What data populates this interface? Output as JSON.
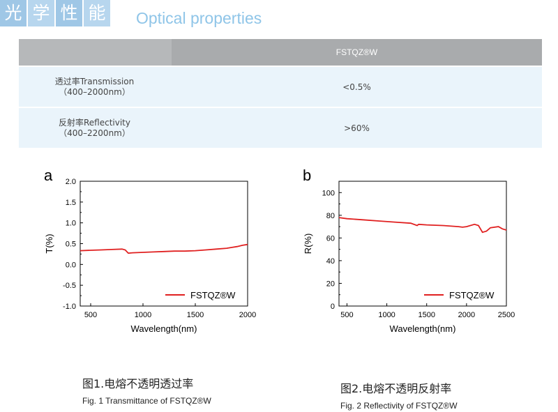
{
  "header": {
    "tiles": [
      "光",
      "学",
      "性",
      "能"
    ],
    "title_en": "Optical properties"
  },
  "table": {
    "column_header": "FSTQZ®W",
    "rows": [
      {
        "label_zh": "透过率Transmission",
        "label_range": "（400–2000nm）",
        "value": "<0.5%"
      },
      {
        "label_zh": "反射率Reflectivity",
        "label_range": "（400–2200nm）",
        "value": ">60%"
      }
    ]
  },
  "figures": [
    {
      "panel": "a",
      "caption_zh": "图1.电熔不透明透过率",
      "caption_en": "Fig. 1  Transmittance of FSTQZ®W"
    },
    {
      "panel": "b",
      "caption_zh": "图2.电熔不透明反射率",
      "caption_en": "Fig. 2  Reflectivity of FSTQZ®W"
    }
  ],
  "colors": {
    "series": "#e02020",
    "header_tile": "#9fc7e6",
    "table_head": "#b6b8ba",
    "table_row": "#eaf4fb"
  },
  "chart_data": [
    {
      "type": "line",
      "xlabel": "Wavelength(nm)",
      "ylabel": "T(%)",
      "xlim": [
        400,
        2000
      ],
      "ylim": [
        -1.0,
        2.0
      ],
      "xticks": [
        500,
        1000,
        1500,
        2000
      ],
      "yticks": [
        -1.0,
        -0.5,
        0.0,
        0.5,
        1.0,
        1.5,
        2.0
      ],
      "xtick_labels": [
        "500",
        "1000",
        "1500",
        "2000"
      ],
      "ytick_labels": [
        "-1.0",
        "-0.5",
        "0.0",
        "0.5",
        "1.0",
        "1.5",
        "2.0"
      ],
      "legend_position": "bottom-right",
      "series": [
        {
          "name": "FSTQZ®W",
          "x": [
            400,
            500,
            600,
            700,
            800,
            830,
            860,
            900,
            1000,
            1100,
            1200,
            1300,
            1400,
            1500,
            1600,
            1700,
            1800,
            1850,
            1900,
            1950,
            2000
          ],
          "y": [
            0.33,
            0.34,
            0.35,
            0.36,
            0.37,
            0.35,
            0.27,
            0.28,
            0.29,
            0.3,
            0.31,
            0.32,
            0.32,
            0.33,
            0.35,
            0.37,
            0.39,
            0.41,
            0.43,
            0.46,
            0.48
          ]
        }
      ]
    },
    {
      "type": "line",
      "xlabel": "Wavelength(nm)",
      "ylabel": "R(%)",
      "xlim": [
        400,
        2500
      ],
      "ylim": [
        0,
        110
      ],
      "xticks": [
        500,
        1000,
        1500,
        2000,
        2500
      ],
      "yticks": [
        0,
        20,
        40,
        60,
        80,
        100
      ],
      "xtick_labels": [
        "500",
        "1000",
        "1500",
        "2000",
        "2500"
      ],
      "ytick_labels": [
        "0",
        "20",
        "40",
        "60",
        "80",
        "100"
      ],
      "legend_position": "bottom-right",
      "series": [
        {
          "name": "FSTQZ®W",
          "x": [
            400,
            500,
            700,
            900,
            1100,
            1300,
            1380,
            1400,
            1500,
            1700,
            1900,
            1950,
            2000,
            2100,
            2150,
            2200,
            2250,
            2300,
            2400,
            2450,
            2500
          ],
          "y": [
            78,
            77,
            76,
            75,
            74,
            73,
            71,
            72,
            71.5,
            71,
            70,
            69.5,
            70,
            72,
            71,
            65,
            66,
            69,
            70,
            68,
            67
          ]
        }
      ]
    }
  ]
}
